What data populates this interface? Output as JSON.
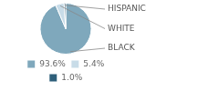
{
  "chart_data": {
    "type": "pie",
    "categories": [
      "BLACK",
      "WHITE",
      "HISPANIC"
    ],
    "values": [
      93.6,
      5.4,
      1.0
    ],
    "value_labels": [
      "93.6%",
      "5.4%",
      "1.0%"
    ],
    "colors": [
      "#7fa8bc",
      "#c8dce8",
      "#2e5f7a"
    ],
    "legend": "bottom"
  }
}
